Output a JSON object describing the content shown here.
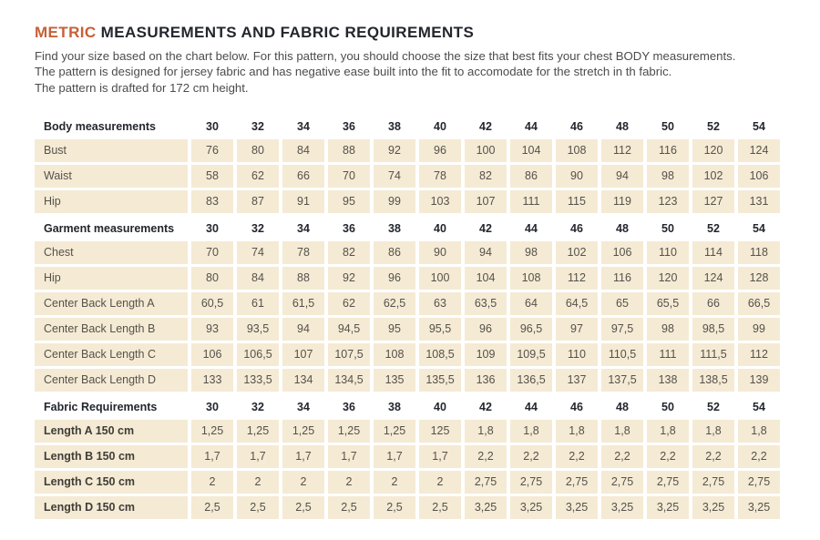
{
  "header": {
    "title_accent": "METRIC",
    "title_rest": " MEASUREMENTS AND FABRIC REQUIREMENTS",
    "intro_lines": [
      "Find your size based on the chart below. For this pattern, you should choose the size that best fits your chest BODY measurements.",
      "The pattern is designed for jersey fabric and has negative ease built into the fit to accomodate for the stretch in th fabric.",
      "The pattern is drafted for 172 cm height."
    ]
  },
  "colors": {
    "accent": "#c75f38",
    "cell_background": "#f5ead4",
    "heading_text": "#23262d",
    "body_text": "#4c4c4c",
    "cell_text": "#55524b"
  },
  "table": {
    "sizes": [
      "30",
      "32",
      "34",
      "36",
      "38",
      "40",
      "42",
      "44",
      "46",
      "48",
      "50",
      "52",
      "54"
    ],
    "sections": [
      {
        "header": "Body measurements",
        "emphasized_labels": false,
        "rows": [
          {
            "label": "Bust",
            "values": [
              "76",
              "80",
              "84",
              "88",
              "92",
              "96",
              "100",
              "104",
              "108",
              "112",
              "116",
              "120",
              "124"
            ]
          },
          {
            "label": "Waist",
            "values": [
              "58",
              "62",
              "66",
              "70",
              "74",
              "78",
              "82",
              "86",
              "90",
              "94",
              "98",
              "102",
              "106"
            ]
          },
          {
            "label": "Hip",
            "values": [
              "83",
              "87",
              "91",
              "95",
              "99",
              "103",
              "107",
              "111",
              "115",
              "119",
              "123",
              "127",
              "131"
            ]
          }
        ]
      },
      {
        "header": "Garment measurements",
        "emphasized_labels": false,
        "rows": [
          {
            "label": "Chest",
            "values": [
              "70",
              "74",
              "78",
              "82",
              "86",
              "90",
              "94",
              "98",
              "102",
              "106",
              "110",
              "114",
              "118"
            ]
          },
          {
            "label": "Hip",
            "values": [
              "80",
              "84",
              "88",
              "92",
              "96",
              "100",
              "104",
              "108",
              "112",
              "116",
              "120",
              "124",
              "128"
            ]
          },
          {
            "label": "Center Back Length A",
            "values": [
              "60,5",
              "61",
              "61,5",
              "62",
              "62,5",
              "63",
              "63,5",
              "64",
              "64,5",
              "65",
              "65,5",
              "66",
              "66,5"
            ]
          },
          {
            "label": "Center Back Length B",
            "values": [
              "93",
              "93,5",
              "94",
              "94,5",
              "95",
              "95,5",
              "96",
              "96,5",
              "97",
              "97,5",
              "98",
              "98,5",
              "99"
            ]
          },
          {
            "label": "Center Back Length C",
            "values": [
              "106",
              "106,5",
              "107",
              "107,5",
              "108",
              "108,5",
              "109",
              "109,5",
              "110",
              "110,5",
              "111",
              "111,5",
              "112"
            ]
          },
          {
            "label": "Center Back Length D",
            "values": [
              "133",
              "133,5",
              "134",
              "134,5",
              "135",
              "135,5",
              "136",
              "136,5",
              "137",
              "137,5",
              "138",
              "138,5",
              "139"
            ]
          }
        ]
      },
      {
        "header": "Fabric Requirements",
        "emphasized_labels": true,
        "rows": [
          {
            "label": "Length A 150 cm",
            "values": [
              "1,25",
              "1,25",
              "1,25",
              "1,25",
              "1,25",
              "125",
              "1,8",
              "1,8",
              "1,8",
              "1,8",
              "1,8",
              "1,8",
              "1,8"
            ]
          },
          {
            "label": "Length B 150 cm",
            "values": [
              "1,7",
              "1,7",
              "1,7",
              "1,7",
              "1,7",
              "1,7",
              "2,2",
              "2,2",
              "2,2",
              "2,2",
              "2,2",
              "2,2",
              "2,2"
            ]
          },
          {
            "label": "Length C 150 cm",
            "values": [
              "2",
              "2",
              "2",
              "2",
              "2",
              "2",
              "2,75",
              "2,75",
              "2,75",
              "2,75",
              "2,75",
              "2,75",
              "2,75"
            ]
          },
          {
            "label": "Length D 150 cm",
            "values": [
              "2,5",
              "2,5",
              "2,5",
              "2,5",
              "2,5",
              "2,5",
              "3,25",
              "3,25",
              "3,25",
              "3,25",
              "3,25",
              "3,25",
              "3,25"
            ]
          }
        ]
      }
    ]
  }
}
